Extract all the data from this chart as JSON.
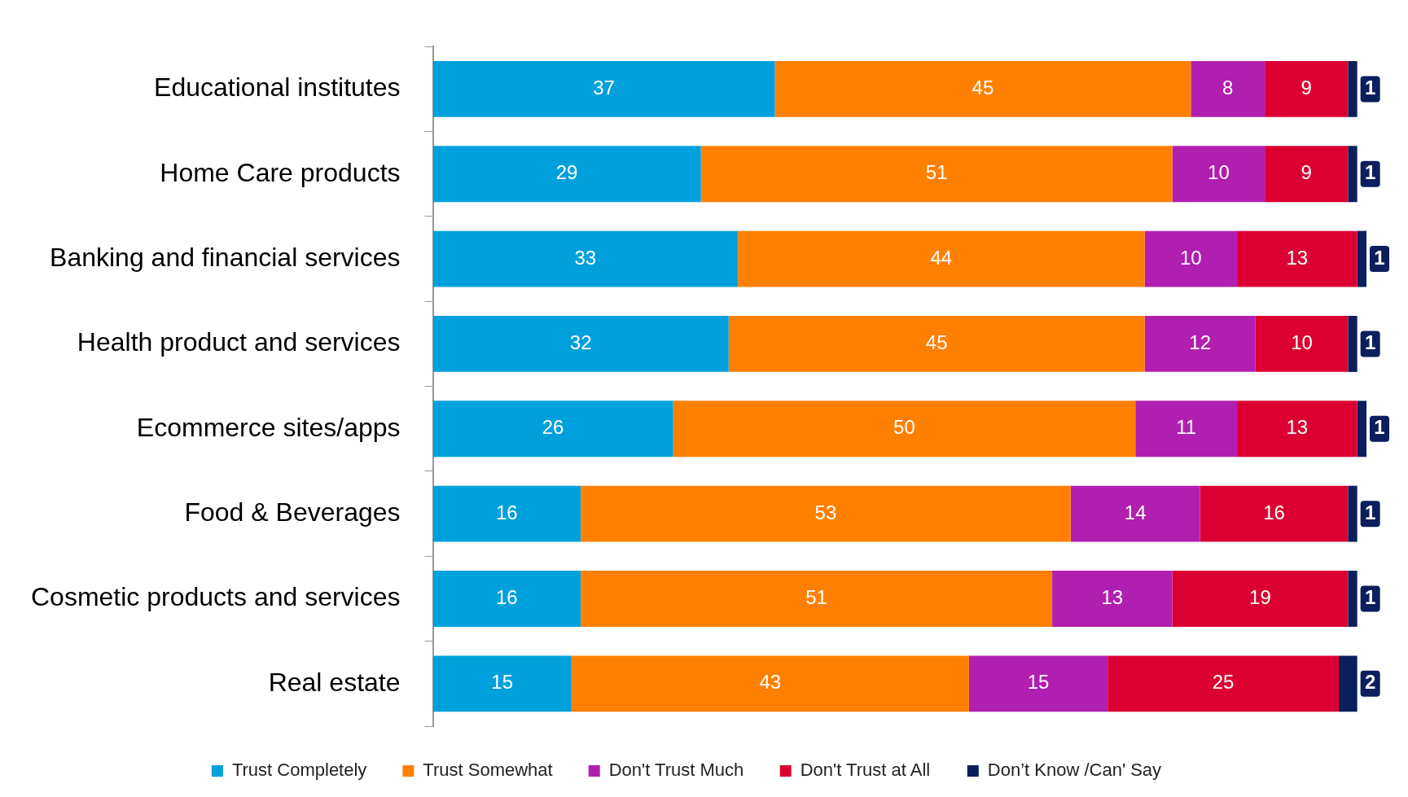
{
  "chart_data": {
    "type": "bar",
    "orientation": "horizontal",
    "stacked": true,
    "data_labels": true,
    "legend": "bottom",
    "grid": false,
    "categories": [
      "Educational institutes",
      "Home Care products",
      "Banking and financial services",
      "Health product and services",
      "Ecommerce sites/apps",
      "Food & Beverages",
      "Cosmetic products and services",
      "Real estate"
    ],
    "series": [
      {
        "name": "Trust Completely",
        "color": "#00a0dc",
        "values": [
          37,
          29,
          33,
          32,
          26,
          16,
          16,
          15
        ]
      },
      {
        "name": "Trust Somewhat",
        "color": "#ff8000",
        "values": [
          45,
          51,
          44,
          45,
          50,
          53,
          51,
          43
        ]
      },
      {
        "name": "Don't Trust Much",
        "color": "#b11fb0",
        "values": [
          8,
          10,
          10,
          12,
          11,
          14,
          13,
          15
        ]
      },
      {
        "name": "Don't Trust at All",
        "color": "#dc0032",
        "values": [
          9,
          9,
          13,
          10,
          13,
          16,
          19,
          25
        ]
      },
      {
        "name": "Don’t Know /Can' Say",
        "color": "#0a1f5c",
        "values": [
          1,
          1,
          1,
          1,
          1,
          1,
          1,
          2
        ]
      }
    ]
  }
}
